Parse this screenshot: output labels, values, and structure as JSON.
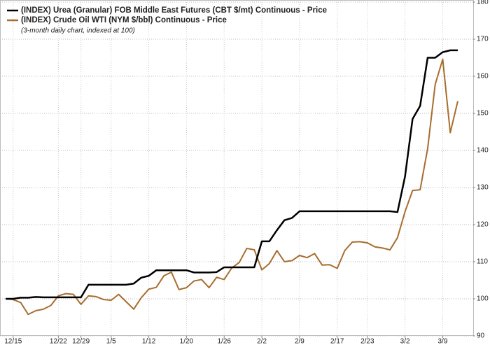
{
  "chart_data": {
    "type": "line",
    "title": null,
    "legend_entries_title": null,
    "subtitle": "(3-month daily chart, indexed at 100)",
    "categories": [
      null,
      "12/15",
      null,
      null,
      null,
      null,
      null,
      "12/22",
      null,
      null,
      "12/29",
      null,
      null,
      null,
      "1/5",
      null,
      null,
      null,
      null,
      "1/12",
      null,
      null,
      null,
      null,
      "1/20",
      null,
      null,
      null,
      null,
      "1/26",
      null,
      null,
      null,
      null,
      "2/2",
      null,
      null,
      null,
      null,
      "2/9",
      null,
      null,
      null,
      null,
      "2/17",
      null,
      null,
      null,
      "2/23",
      null,
      null,
      null,
      null,
      "3/2",
      null,
      null,
      null,
      null,
      "3/9",
      null,
      null
    ],
    "series": [
      {
        "name": "(INDEX) Urea (Granular) FOB Middle East Futures (CBT $/mt) Continuous - Price",
        "color": "#000000",
        "values": [
          100,
          100,
          100.3,
          100.3,
          100.5,
          100.4,
          100.4,
          100.4,
          100.4,
          100.4,
          100.4,
          103.8,
          103.8,
          103.8,
          103.8,
          103.8,
          103.8,
          104.1,
          105.7,
          106.2,
          107.7,
          107.7,
          107.7,
          107.7,
          107.7,
          107.1,
          107.1,
          107.1,
          107.2,
          108.5,
          108.5,
          108.5,
          108.5,
          108.5,
          115.5,
          115.5,
          118.5,
          121.2,
          121.8,
          123.6,
          123.6,
          123.6,
          123.6,
          123.6,
          123.6,
          123.6,
          123.6,
          123.6,
          123.6,
          123.6,
          123.6,
          123.6,
          123.4,
          133,
          148.5,
          152,
          165,
          165,
          166.5,
          167,
          167
        ]
      },
      {
        "name": "(INDEX) Crude Oil WTI (NYM $/bbl) Continuous - Price",
        "color": "#a86d2e",
        "values": [
          100,
          99.8,
          99,
          95.8,
          96.8,
          97.2,
          98.2,
          100.8,
          101.4,
          101.2,
          98.5,
          100.8,
          100.6,
          99.8,
          99.6,
          101.2,
          99.2,
          97.2,
          100.3,
          102.6,
          103.1,
          106.2,
          107.2,
          102.5,
          103,
          104.8,
          105.2,
          103,
          105.8,
          105.2,
          108.3,
          109.8,
          113.6,
          113.2,
          107.8,
          109.5,
          113,
          110,
          110.3,
          111.7,
          111.1,
          112.2,
          109.1,
          109.2,
          108.2,
          113,
          115.3,
          115.4,
          115.1,
          114,
          113.7,
          113.2,
          116.5,
          123.5,
          129.2,
          129.4,
          140.5,
          157.8,
          164.6,
          144.8,
          153.3
        ]
      }
    ],
    "ylim": [
      90,
      180
    ],
    "yticks": [
      90,
      100,
      110,
      120,
      130,
      140,
      150,
      160,
      170,
      180
    ],
    "grid": true
  }
}
